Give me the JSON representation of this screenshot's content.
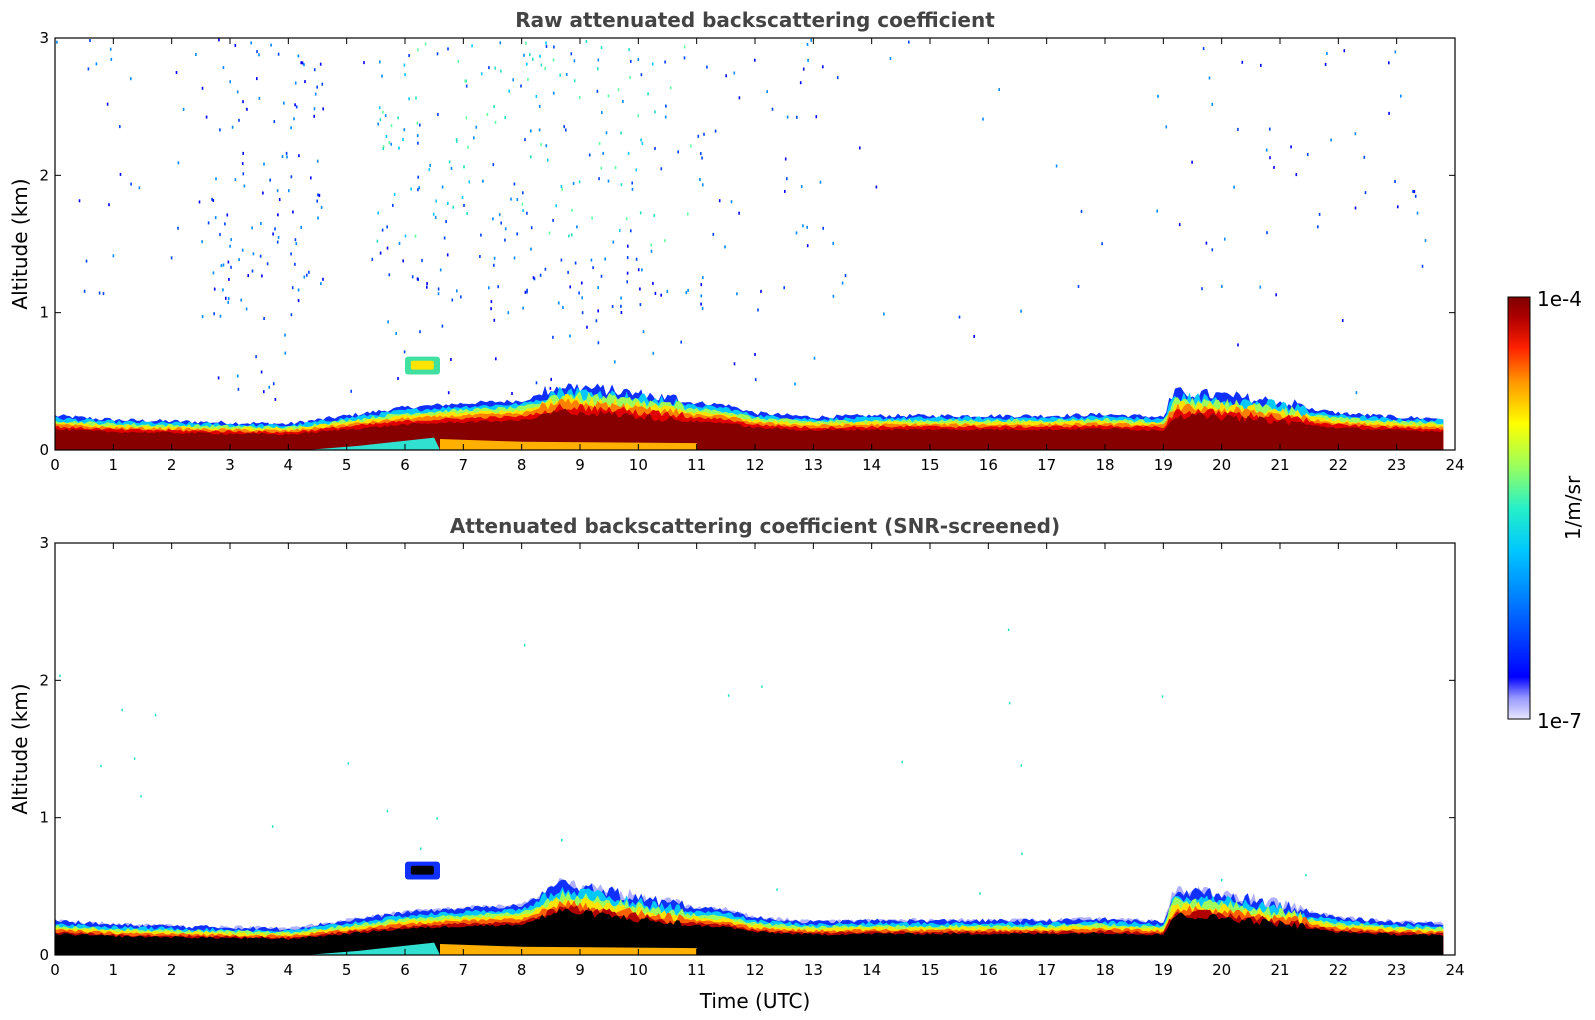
{
  "chart_data": [
    {
      "type": "heatmap",
      "title": "Raw attenuated backscattering coefficient",
      "xlabel": "",
      "ylabel": "Altitude (km)",
      "xlim": [
        0,
        24
      ],
      "ylim": [
        0,
        3
      ],
      "x_ticks": [
        "0",
        "1",
        "2",
        "3",
        "4",
        "5",
        "6",
        "7",
        "8",
        "9",
        "10",
        "11",
        "12",
        "13",
        "14",
        "15",
        "16",
        "17",
        "18",
        "19",
        "20",
        "21",
        "22",
        "23",
        "24"
      ],
      "y_ticks": [
        "0",
        "1",
        "2",
        "3"
      ],
      "data_extent_x": [
        0,
        23.8
      ],
      "layer_top_km": [
        [
          0,
          0.25
        ],
        [
          1,
          0.22
        ],
        [
          2,
          0.21
        ],
        [
          3,
          0.2
        ],
        [
          4,
          0.19
        ],
        [
          5,
          0.25
        ],
        [
          6,
          0.31
        ],
        [
          7,
          0.34
        ],
        [
          8,
          0.36
        ],
        [
          8.7,
          0.45
        ],
        [
          9.5,
          0.42
        ],
        [
          10.5,
          0.36
        ],
        [
          11.5,
          0.33
        ],
        [
          12,
          0.27
        ],
        [
          13,
          0.24
        ],
        [
          14,
          0.25
        ],
        [
          15,
          0.25
        ],
        [
          16,
          0.25
        ],
        [
          17,
          0.25
        ],
        [
          18,
          0.26
        ],
        [
          19,
          0.24
        ],
        [
          19.2,
          0.4
        ],
        [
          20,
          0.38
        ],
        [
          21,
          0.33
        ],
        [
          22,
          0.27
        ],
        [
          23,
          0.24
        ],
        [
          23.8,
          0.23
        ]
      ],
      "elevated_layer": {
        "x": [
          6.0,
          6.6
        ],
        "y": [
          0.55,
          0.68
        ]
      }
    },
    {
      "type": "heatmap",
      "title": "Attenuated backscattering coefficient (SNR-screened)",
      "xlabel": "Time (UTC)",
      "ylabel": "Altitude (km)",
      "xlim": [
        0,
        24
      ],
      "ylim": [
        0,
        3
      ],
      "x_ticks": [
        "0",
        "1",
        "2",
        "3",
        "4",
        "5",
        "6",
        "7",
        "8",
        "9",
        "10",
        "11",
        "12",
        "13",
        "14",
        "15",
        "16",
        "17",
        "18",
        "19",
        "20",
        "21",
        "22",
        "23",
        "24"
      ],
      "y_ticks": [
        "0",
        "1",
        "2",
        "3"
      ],
      "data_extent_x": [
        0,
        23.8
      ],
      "layer_top_km": [
        [
          0,
          0.25
        ],
        [
          1,
          0.22
        ],
        [
          2,
          0.21
        ],
        [
          3,
          0.2
        ],
        [
          4,
          0.19
        ],
        [
          5,
          0.25
        ],
        [
          6,
          0.31
        ],
        [
          7,
          0.34
        ],
        [
          8,
          0.36
        ],
        [
          8.7,
          0.5
        ],
        [
          9.5,
          0.44
        ],
        [
          10.5,
          0.36
        ],
        [
          11.5,
          0.33
        ],
        [
          12,
          0.27
        ],
        [
          13,
          0.24
        ],
        [
          14,
          0.25
        ],
        [
          15,
          0.25
        ],
        [
          16,
          0.25
        ],
        [
          17,
          0.25
        ],
        [
          18,
          0.26
        ],
        [
          19,
          0.24
        ],
        [
          19.2,
          0.45
        ],
        [
          20,
          0.42
        ],
        [
          21,
          0.35
        ],
        [
          22,
          0.27
        ],
        [
          23,
          0.24
        ],
        [
          23.8,
          0.23
        ]
      ],
      "elevated_layer": {
        "x": [
          6.0,
          6.6
        ],
        "y": [
          0.55,
          0.68
        ]
      }
    }
  ],
  "colorbar": {
    "label": "1/m/sr",
    "max_label": "1e-4",
    "min_label": "1e-7",
    "scale": "log"
  },
  "colors": {
    "background": "#ffffff",
    "axis": "#000000",
    "title": "#444444",
    "jet": [
      "#7f0000",
      "#d40000",
      "#ff3b00",
      "#ff9a00",
      "#ffe400",
      "#b8ff3f",
      "#4cffaa",
      "#00e4ff",
      "#0088ff",
      "#0018ff",
      "#0000c8",
      "#7a7aff",
      "#d8d8ff"
    ],
    "black_core": "#000000",
    "dark_red_core": "#870000"
  }
}
